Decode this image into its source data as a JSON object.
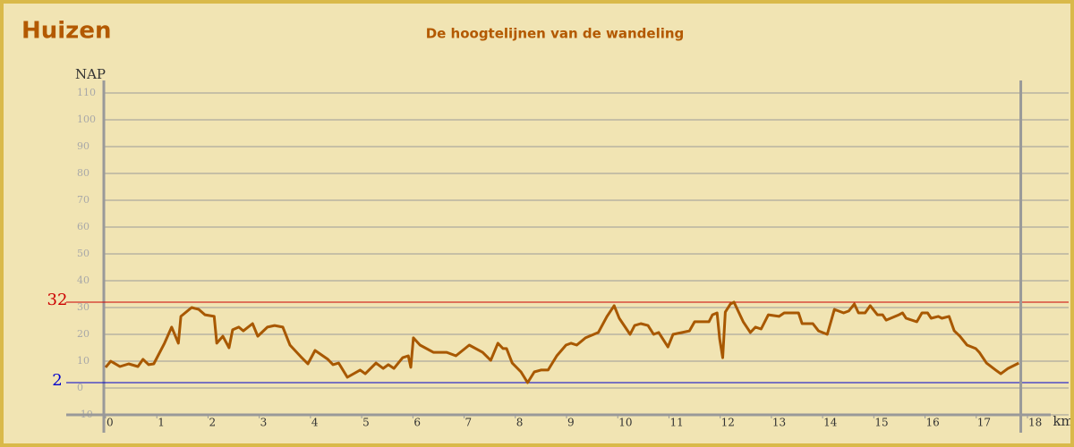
{
  "header": {
    "title": "Huizen"
  },
  "chart_data": {
    "type": "line",
    "title": "De hoogtelijnen van de wandeling",
    "ylabel": "NAP",
    "xlabel": "km",
    "xlim": [
      0,
      18
    ],
    "ylim": [
      -10,
      110
    ],
    "xticks": [
      0,
      1,
      2,
      3,
      4,
      5,
      6,
      7,
      8,
      9,
      10,
      11,
      12,
      13,
      14,
      15,
      16,
      17,
      18
    ],
    "yticks": [
      -10,
      0,
      10,
      20,
      30,
      40,
      50,
      60,
      70,
      80,
      90,
      100,
      110
    ],
    "grid": true,
    "reference_lines": [
      {
        "value": 32,
        "color": "#cc0000"
      },
      {
        "value": 2,
        "color": "#0000cc"
      }
    ],
    "end_x": 17.87,
    "x": [
      0,
      0.1,
      0.28,
      0.45,
      0.63,
      0.73,
      0.84,
      0.94,
      1.15,
      1.29,
      1.42,
      1.47,
      1.68,
      1.82,
      1.94,
      2.12,
      2.17,
      2.29,
      2.41,
      2.48,
      2.6,
      2.69,
      2.87,
      2.97,
      3.16,
      3.3,
      3.46,
      3.6,
      3.81,
      3.95,
      4.09,
      4.34,
      4.44,
      4.55,
      4.72,
      4.97,
      5.07,
      5.28,
      5.42,
      5.52,
      5.63,
      5.8,
      5.91,
      5.96,
      6.01,
      6.14,
      6.4,
      6.66,
      6.84,
      7.1,
      7.36,
      7.52,
      7.66,
      7.76,
      7.83,
      7.94,
      8.11,
      8.24,
      8.37,
      8.5,
      8.64,
      8.81,
      8.99,
      9.09,
      9.2,
      9.37,
      9.62,
      9.79,
      9.93,
      10.03,
      10.24,
      10.33,
      10.45,
      10.59,
      10.7,
      10.8,
      10.98,
      11.08,
      11.26,
      11.4,
      11.5,
      11.78,
      11.85,
      11.94,
      11.99,
      12.05,
      12.1,
      12.2,
      12.27,
      12.45,
      12.59,
      12.69,
      12.8,
      12.94,
      13.15,
      13.25,
      13.53,
      13.6,
      13.81,
      13.92,
      14.09,
      14.23,
      14.41,
      14.51,
      14.62,
      14.7,
      14.83,
      14.93,
      15.07,
      15.17,
      15.24,
      15.49,
      15.56,
      15.63,
      15.84,
      15.94,
      16.05,
      16.12,
      16.26,
      16.33,
      16.47,
      16.57,
      16.68,
      16.82,
      16.99,
      17.06,
      17.2,
      17.38,
      17.48,
      17.62,
      17.83
    ],
    "series": [
      {
        "name": "NAP",
        "color": "#a85800",
        "values": [
          7.7,
          10,
          8,
          9,
          8,
          10.7,
          8.7,
          9,
          16.7,
          22.7,
          16.7,
          26.7,
          30,
          29.3,
          27.3,
          26.7,
          16.7,
          19.3,
          15,
          21.7,
          22.7,
          21.3,
          24,
          19.3,
          22.7,
          23.3,
          22.7,
          16,
          11.7,
          9,
          14,
          10.7,
          8.7,
          9.3,
          4,
          6.7,
          5.3,
          9.3,
          7.3,
          8.7,
          7.3,
          11.3,
          12,
          7.7,
          18.7,
          16,
          13.3,
          13.3,
          12,
          16,
          13.3,
          10.3,
          16.7,
          14.7,
          14.7,
          9.3,
          6,
          2,
          6,
          6.7,
          6.7,
          12,
          16,
          16.7,
          16,
          18.7,
          20.7,
          26.7,
          30.7,
          26,
          20,
          23.3,
          24,
          23.3,
          20,
          20.7,
          15.3,
          20,
          20.7,
          21.3,
          24.7,
          24.7,
          27.3,
          28,
          18.3,
          11.3,
          28.3,
          31.3,
          32,
          24.7,
          20.7,
          22.7,
          22,
          27.3,
          26.7,
          28,
          28,
          24,
          24,
          21.3,
          20,
          29.3,
          28,
          28.7,
          31.3,
          28,
          28,
          30.7,
          27.3,
          27.3,
          25.3,
          27.3,
          28,
          26,
          24.7,
          28,
          28,
          26,
          26.7,
          26,
          26.7,
          21.3,
          19.3,
          16,
          14.7,
          13.3,
          9.3,
          6.7,
          5.3,
          7.3,
          9.3
        ]
      }
    ]
  }
}
